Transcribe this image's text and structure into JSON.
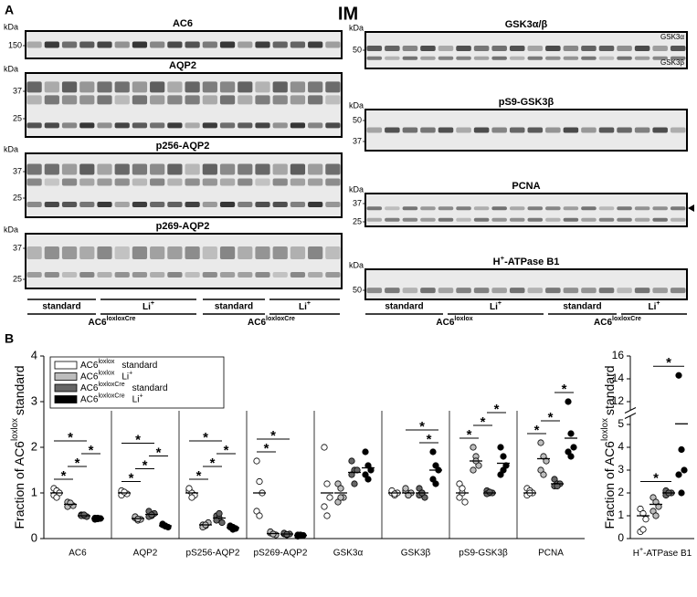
{
  "figure_title": "IM",
  "panel_a": {
    "label": "A",
    "kda": "kDa",
    "left": {
      "blots": [
        {
          "title": "AC6",
          "markers": [
            150
          ]
        },
        {
          "title": "AQP2",
          "markers": [
            37,
            25
          ]
        },
        {
          "title": "p256-AQP2",
          "markers": [
            37,
            25
          ]
        },
        {
          "title": "p269-AQP2",
          "markers": [
            37,
            25
          ]
        }
      ],
      "diets": [
        "standard",
        [
          "Li",
          "+"
        ],
        "standard",
        [
          "Li",
          "+"
        ]
      ],
      "genotypes": [
        [
          "AC6",
          "loxloxCre"
        ],
        [
          "AC6",
          "loxloxCre"
        ]
      ]
    },
    "right": {
      "blots": [
        {
          "title": "GSK3α/β",
          "markers": [
            50
          ],
          "bands": [
            "GSK3α",
            "GSK3β"
          ]
        },
        {
          "title": "pS9-GSK3β",
          "markers": [
            50,
            37
          ]
        },
        {
          "title": "PCNA",
          "markers": [
            37,
            25
          ]
        },
        {
          "title": [
            "H",
            "+",
            "-ATPase B1"
          ],
          "markers": [
            50
          ]
        }
      ],
      "diets": [
        "standard",
        [
          "Li",
          "+"
        ],
        "standard",
        [
          "Li",
          "+"
        ]
      ],
      "genotypes": [
        [
          "AC6",
          "loxlox"
        ],
        [
          "AC6",
          "loxloxCre"
        ]
      ]
    }
  },
  "panel_b_label": "B",
  "chart_data": [
    {
      "type": "dot",
      "y_label": [
        "Fraction of AC6",
        "loxlox",
        "standard"
      ],
      "categories": [
        "AC6",
        "AQP2",
        "pS256-AQP2",
        "pS269-AQP2",
        "GSK3α",
        "GSK3β",
        "pS9-GSK3β",
        "PCNA"
      ],
      "ylim": [
        0,
        4
      ],
      "yticks": [
        0,
        1,
        2,
        3,
        4
      ],
      "significance_label": "*",
      "significance": [
        [
          0,
          0,
          1
        ],
        [
          0,
          1,
          2
        ],
        [
          0,
          2,
          3
        ],
        [
          0,
          0,
          2
        ],
        [
          1,
          0,
          1
        ],
        [
          1,
          1,
          2
        ],
        [
          1,
          2,
          3
        ],
        [
          1,
          0,
          2
        ],
        [
          2,
          0,
          1
        ],
        [
          2,
          1,
          2
        ],
        [
          2,
          2,
          3
        ],
        [
          2,
          0,
          2
        ],
        [
          3,
          0,
          1
        ],
        [
          3,
          0,
          2
        ],
        [
          5,
          2,
          3
        ],
        [
          5,
          1,
          3
        ],
        [
          6,
          0,
          1
        ],
        [
          6,
          1,
          2
        ],
        [
          6,
          2,
          3
        ],
        [
          7,
          0,
          1
        ],
        [
          7,
          1,
          2
        ],
        [
          7,
          2,
          3
        ]
      ],
      "series": [
        {
          "name": [
            "AC6",
            "loxlox",
            "standard"
          ],
          "color": "#ffffff",
          "points": [
            [
              1.1,
              1.05,
              1.0,
              0.95,
              0.9
            ],
            [
              1.05,
              1.0,
              0.98,
              0.95,
              1.02
            ],
            [
              1.05,
              1.0,
              0.95,
              1.1,
              0.9
            ],
            [
              1.7,
              1.25,
              1.0,
              0.6,
              0.5
            ],
            [
              2.0,
              1.2,
              0.9,
              0.7,
              0.5
            ],
            [
              1.0,
              0.95,
              1.0,
              1.05,
              0.98
            ],
            [
              1.2,
              1.0,
              0.8,
              0.9,
              1.1
            ],
            [
              1.1,
              1.05,
              1.0,
              0.95,
              1.0
            ]
          ],
          "means": [
            1.0,
            1.0,
            1.0,
            1.0,
            1.0,
            1.0,
            1.0,
            1.0
          ]
        },
        {
          "name": [
            "AC6",
            "loxlox",
            "Li",
            "+"
          ],
          "color": "#bdbdbd",
          "points": [
            [
              0.8,
              0.75,
              0.72,
              0.7,
              0.78
            ],
            [
              0.45,
              0.4,
              0.42,
              0.48,
              0.43
            ],
            [
              0.3,
              0.28,
              0.35,
              0.25,
              0.3
            ],
            [
              0.12,
              0.1,
              0.08,
              0.15,
              0.1
            ],
            [
              1.2,
              1.1,
              0.9,
              0.8,
              0.9
            ],
            [
              1.05,
              0.95,
              1.0,
              1.1,
              0.95
            ],
            [
              2.0,
              1.8,
              1.6,
              1.5,
              1.7
            ],
            [
              2.1,
              1.8,
              1.7,
              1.5,
              1.4
            ]
          ],
          "means": [
            0.75,
            0.44,
            0.3,
            0.11,
            1.0,
            1.0,
            1.7,
            1.75
          ]
        },
        {
          "name": [
            "AC6",
            "loxloxCre",
            "standard"
          ],
          "color": "#666666",
          "points": [
            [
              0.52,
              0.5,
              0.48,
              0.5,
              0.52
            ],
            [
              0.6,
              0.5,
              0.55,
              0.48,
              0.52
            ],
            [
              0.5,
              0.45,
              0.35,
              0.4,
              0.55
            ],
            [
              0.1,
              0.08,
              0.1,
              0.12,
              0.09
            ],
            [
              1.7,
              1.5,
              1.5,
              1.4,
              1.2
            ],
            [
              1.1,
              1.0,
              0.9,
              0.95,
              1.0
            ],
            [
              1.05,
              1.0,
              1.0,
              0.98,
              1.02
            ],
            [
              1.3,
              1.2,
              1.2,
              1.15,
              1.15
            ]
          ],
          "means": [
            0.5,
            0.53,
            0.45,
            0.1,
            1.45,
            1.0,
            1.0,
            1.2
          ]
        },
        {
          "name": [
            "AC6",
            "loxloxCre",
            "Li",
            "+"
          ],
          "color": "#000000",
          "points": [
            [
              0.45,
              0.43,
              0.44,
              0.42,
              0.45
            ],
            [
              0.3,
              0.28,
              0.25,
              0.32,
              0.27
            ],
            [
              0.25,
              0.2,
              0.22,
              0.28,
              0.25
            ],
            [
              0.08,
              0.06,
              0.07,
              0.05,
              0.08
            ],
            [
              1.9,
              1.6,
              1.5,
              1.4,
              1.3
            ],
            [
              1.9,
              1.6,
              1.5,
              1.3,
              1.2
            ],
            [
              2.0,
              1.8,
              1.6,
              1.4,
              1.5
            ],
            [
              3.0,
              2.3,
              2.0,
              1.9,
              1.8
            ]
          ],
          "means": [
            0.44,
            0.28,
            0.24,
            0.07,
            1.55,
            1.5,
            1.65,
            2.2
          ]
        }
      ]
    },
    {
      "type": "dot",
      "y_label": [
        "Fraction of AC6",
        "loxlox",
        "standard"
      ],
      "categories": [
        [
          "H",
          "+",
          "-ATPase B1"
        ]
      ],
      "ylim": [
        0,
        16
      ],
      "yticks": [
        0,
        1,
        2,
        3,
        4,
        5,
        12,
        14,
        16
      ],
      "axis_break": true,
      "significance_label": "*",
      "significance": [
        [
          0,
          0,
          2
        ],
        [
          0,
          1,
          3
        ]
      ],
      "series": [
        {
          "color": "#ffffff",
          "points": [
            [
              1.3,
              1.1,
              0.85,
              0.3,
              0.4
            ]
          ],
          "means": [
            1.0
          ]
        },
        {
          "color": "#bdbdbd",
          "points": [
            [
              1.8,
              1.6,
              1.4,
              1.2,
              1.0
            ]
          ],
          "means": [
            1.5
          ]
        },
        {
          "color": "#666666",
          "points": [
            [
              2.1,
              2.0,
              2.0,
              1.9,
              2.0
            ]
          ],
          "means": [
            2.0
          ]
        },
        {
          "color": "#000000",
          "points": [
            [
              14.3,
              3.9,
              3.0,
              2.8,
              2.0
            ]
          ],
          "means": [
            5.2
          ]
        }
      ]
    }
  ]
}
